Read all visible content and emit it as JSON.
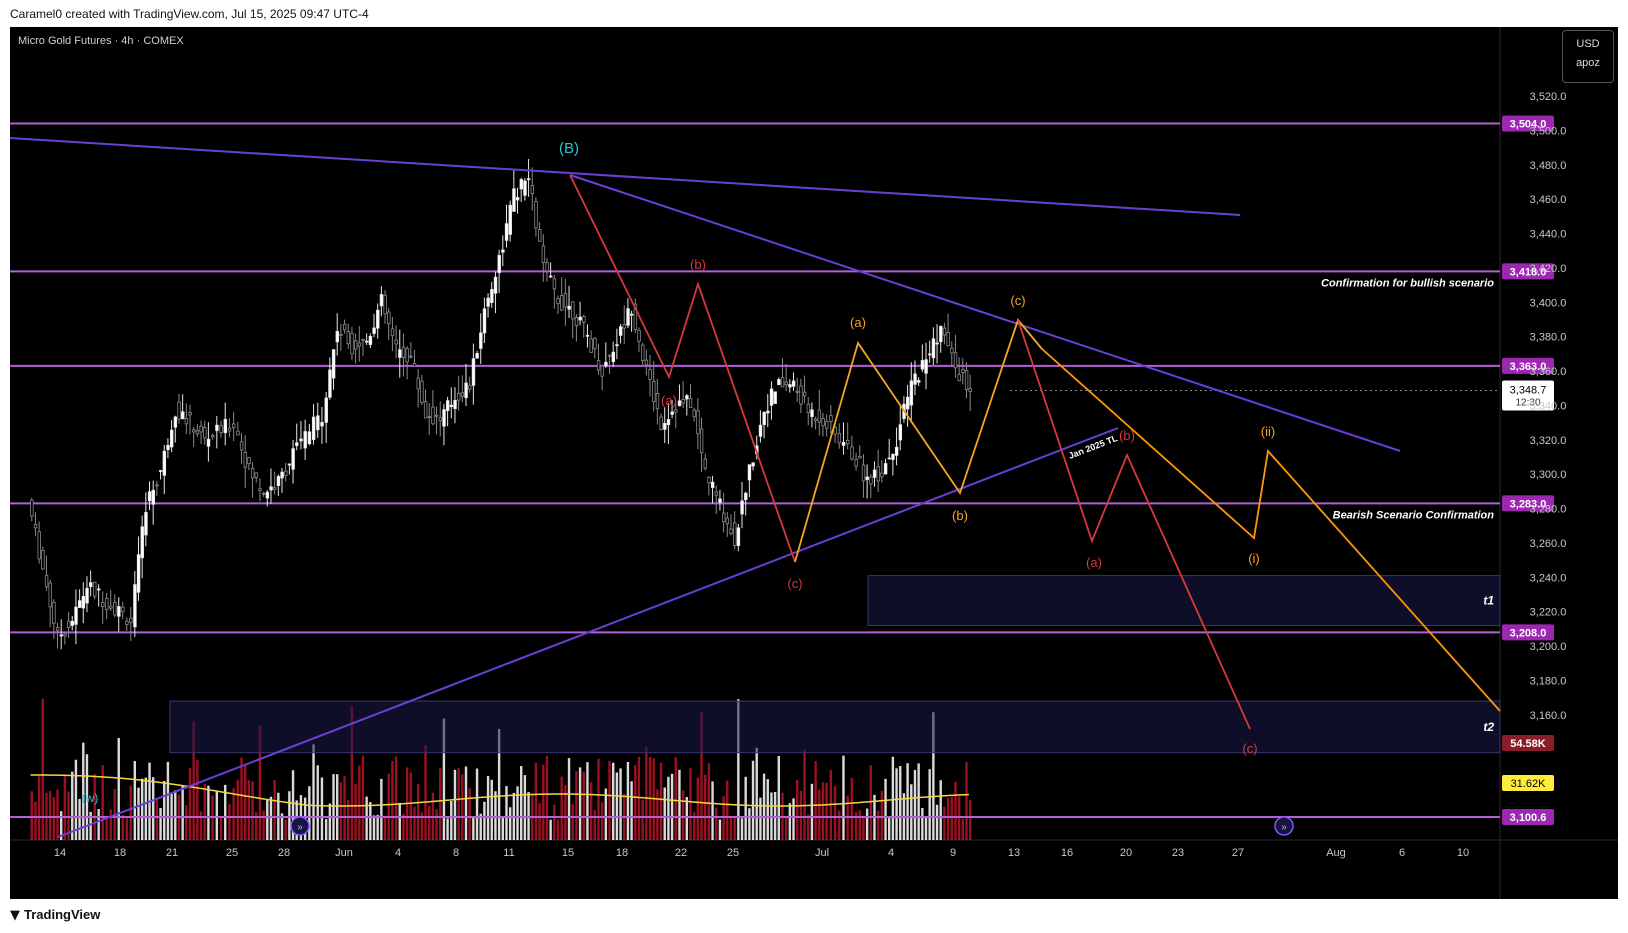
{
  "header": {
    "attribution": "Caramel0 created with TradingView.com, Jul 15, 2025 09:47 UTC-4"
  },
  "footer": {
    "logo_text": "TradingView"
  },
  "chart_data": {
    "type": "candlestick",
    "title": "Micro Gold Futures · 4h · COMEX",
    "currency": "USD",
    "scale_mode": "apoz",
    "y_ticks": [
      3160,
      3180,
      3200,
      3220,
      3240,
      3260,
      3280,
      3300,
      3320,
      3340,
      3360,
      3380,
      3400,
      3420,
      3440,
      3460,
      3480,
      3500,
      3520
    ],
    "y_range": [
      3100,
      3530
    ],
    "x_ticks": [
      "14",
      "18",
      "21",
      "25",
      "28",
      "Jun",
      "4",
      "8",
      "11",
      "15",
      "18",
      "22",
      "25",
      "Jul",
      "4",
      "9",
      "13",
      "16",
      "20",
      "23",
      "27",
      "Aug",
      "6",
      "10"
    ],
    "horizontal_levels": [
      {
        "price": 3504.0,
        "label": "3,504.0"
      },
      {
        "price": 3418.0,
        "label": "3,418.0",
        "note": "Confirmation for bullish scenario"
      },
      {
        "price": 3363.0,
        "label": "3,363.0"
      },
      {
        "price": 3283.0,
        "label": "3,283.0",
        "note": "Bearish Scenario Confirmation"
      },
      {
        "price": 3208.0,
        "label": "3,208.0"
      },
      {
        "price": 3100.6,
        "label": "3,100.6"
      }
    ],
    "last_price": {
      "label": "3,348.7",
      "countdown": "12:30"
    },
    "volume_labels": {
      "volume": "54.58K",
      "volume_ma": "31.62K"
    },
    "trendline_label": "Jan 2025 TL",
    "target_zones": [
      {
        "label": "t1",
        "from": 3212,
        "to": 3241
      },
      {
        "label": "t2",
        "from": 3138,
        "to": 3168
      }
    ],
    "wave_labels": {
      "major": "(B)",
      "sub_w": "(w)",
      "red_history": [
        "(a)",
        "(b)",
        "(c)"
      ],
      "yellow_history": [
        "(a)",
        "(b)",
        "(c)"
      ],
      "red_projection": [
        "(a)",
        "(b)",
        "(c)"
      ],
      "yellow_projection": [
        "(i)",
        "(ii)"
      ]
    },
    "price_path": [
      [
        "May 12",
        3285
      ],
      [
        "May 13",
        3245
      ],
      [
        "May 14",
        3205
      ],
      [
        "May 15",
        3215
      ],
      [
        "May 16",
        3235
      ],
      [
        "May 19",
        3215
      ],
      [
        "May 20",
        3282
      ],
      [
        "May 21",
        3302
      ],
      [
        "May 22",
        3338
      ],
      [
        "May 23",
        3330
      ],
      [
        "May 24",
        3320
      ],
      [
        "May 26",
        3330
      ],
      [
        "May 27",
        3302
      ],
      [
        "May 28",
        3290
      ],
      [
        "May 29",
        3295
      ],
      [
        "May 30",
        3312
      ],
      [
        "Jun 1",
        3335
      ],
      [
        "Jun 2",
        3385
      ],
      [
        "Jun 3",
        3375
      ],
      [
        "Jun 4",
        3378
      ],
      [
        "Jun 5",
        3400
      ],
      [
        "Jun 6",
        3372
      ],
      [
        "Jun 7",
        3368
      ],
      [
        "Jun 8",
        3335
      ],
      [
        "Jun 9",
        3332
      ],
      [
        "Jun 10",
        3345
      ],
      [
        "Jun 11",
        3352
      ],
      [
        "Jun 12",
        3395
      ],
      [
        "Jun 13",
        3425
      ],
      [
        "Jun 14",
        3462
      ],
      [
        "Jun 15",
        3472
      ],
      [
        "Jun 16",
        3420
      ],
      [
        "Jun 17",
        3402
      ],
      [
        "Jun 18",
        3395
      ],
      [
        "Jun 19",
        3380
      ],
      [
        "Jun 20",
        3360
      ],
      [
        "Jun 21",
        3378
      ],
      [
        "Jun 22",
        3398
      ],
      [
        "Jun 23",
        3360
      ],
      [
        "Jun 24",
        3330
      ],
      [
        "Jun 25",
        3340
      ],
      [
        "Jun 26",
        3342
      ],
      [
        "Jun 27",
        3302
      ],
      [
        "Jun 28",
        3282
      ],
      [
        "Jun 29",
        3262
      ],
      [
        "Jun 30",
        3302
      ],
      [
        "Jul 1",
        3338
      ],
      [
        "Jul 2",
        3352
      ],
      [
        "Jul 3",
        3352
      ],
      [
        "Jul 4",
        3337
      ],
      [
        "Jul 5",
        3332
      ],
      [
        "Jul 7",
        3312
      ],
      [
        "Jul 8",
        3297
      ],
      [
        "Jul 9",
        3302
      ],
      [
        "Jul 10",
        3320
      ],
      [
        "Jul 11",
        3352
      ],
      [
        "Jul 12",
        3367
      ],
      [
        "Jul 13",
        3385
      ],
      [
        "Jul 14",
        3362
      ],
      [
        "Jul 15",
        3348.7
      ]
    ]
  }
}
